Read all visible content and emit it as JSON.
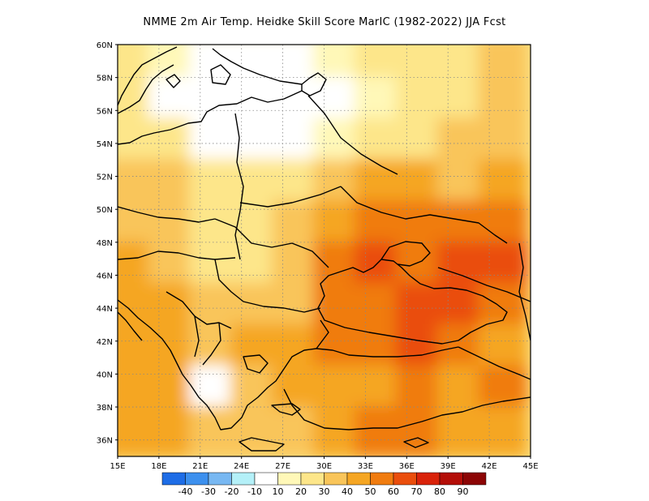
{
  "title": "NMME  2m Air Temp. Heidke Skill Score MarIC (1982-2022) JJA Fcst",
  "axes": {
    "lat_labels": [
      "60N",
      "58N",
      "56N",
      "54N",
      "52N",
      "50N",
      "48N",
      "46N",
      "44N",
      "42N",
      "40N",
      "38N",
      "36N"
    ],
    "lon_labels": [
      "15E",
      "18E",
      "21E",
      "24E",
      "27E",
      "30E",
      "33E",
      "36E",
      "39E",
      "42E",
      "45E"
    ]
  },
  "colorbar": {
    "colors": [
      "#1e6de6",
      "#3c90ee",
      "#78b8f2",
      "#b4f0f8",
      "#ffffff",
      "#fff8b8",
      "#fde68a",
      "#f9c55a",
      "#f5a623",
      "#f07c0f",
      "#ea4e0c",
      "#d9230a",
      "#b40e08",
      "#8c0505"
    ],
    "labels": [
      "-40",
      "-30",
      "-20",
      "-10",
      "10",
      "20",
      "30",
      "40",
      "50",
      "60",
      "70",
      "80",
      "90"
    ]
  },
  "chart_data": {
    "type": "heatmap",
    "title": "NMME  2m Air Temp. Heidke Skill Score MarIC (1982-2022) JJA Fcst",
    "variable": "Heidke Skill Score",
    "region": {
      "lon_range": [
        15,
        45
      ],
      "lat_range": [
        35,
        60
      ]
    },
    "xlabel": "",
    "ylabel": "",
    "x_ticks": [
      "15E",
      "18E",
      "21E",
      "24E",
      "27E",
      "30E",
      "33E",
      "36E",
      "39E",
      "42E",
      "45E"
    ],
    "y_ticks": [
      "60N",
      "58N",
      "56N",
      "54N",
      "52N",
      "50N",
      "48N",
      "46N",
      "44N",
      "42N",
      "40N",
      "38N",
      "36N"
    ],
    "color_levels": [
      -40,
      -30,
      -20,
      -10,
      10,
      20,
      30,
      40,
      50,
      60,
      70,
      80,
      90
    ],
    "grid": true,
    "lons": [
      16,
      19,
      22,
      25,
      28,
      31,
      34,
      37,
      40,
      43
    ],
    "lats": [
      59,
      56.5,
      54,
      51.5,
      49,
      46.5,
      44,
      41.5,
      39,
      36.5
    ],
    "values": [
      [
        20,
        15,
        5,
        0,
        0,
        15,
        20,
        25,
        25,
        30
      ],
      [
        20,
        0,
        0,
        0,
        0,
        5,
        15,
        20,
        25,
        30
      ],
      [
        25,
        20,
        5,
        0,
        0,
        10,
        20,
        25,
        30,
        30
      ],
      [
        30,
        30,
        20,
        20,
        25,
        35,
        40,
        40,
        35,
        40
      ],
      [
        35,
        30,
        20,
        25,
        30,
        45,
        50,
        55,
        55,
        55
      ],
      [
        40,
        35,
        25,
        25,
        35,
        50,
        60,
        55,
        65,
        60
      ],
      [
        45,
        40,
        30,
        30,
        35,
        50,
        55,
        60,
        65,
        50
      ],
      [
        40,
        40,
        35,
        40,
        45,
        50,
        55,
        60,
        50,
        45
      ],
      [
        40,
        40,
        5,
        30,
        40,
        45,
        45,
        50,
        45,
        50
      ],
      [
        40,
        40,
        35,
        30,
        35,
        40,
        50,
        50,
        45,
        45
      ]
    ]
  }
}
